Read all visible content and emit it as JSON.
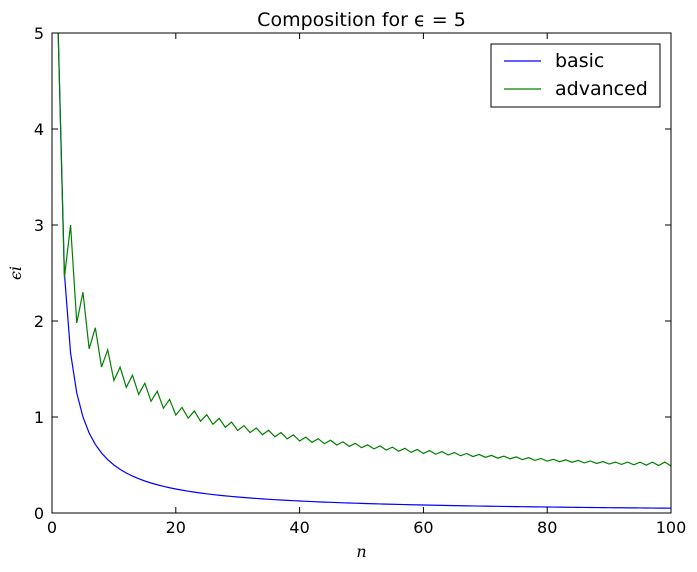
{
  "chart_data": {
    "type": "line",
    "title": "Composition for ϵ = 5",
    "xlabel": "n",
    "ylabel": "ϵi",
    "xlim": [
      0,
      100
    ],
    "ylim": [
      0,
      5
    ],
    "x_ticks": [
      0,
      20,
      40,
      60,
      80,
      100
    ],
    "y_ticks": [
      0,
      1,
      2,
      3,
      4,
      5
    ],
    "grid": false,
    "legend_position": "top-right",
    "series": [
      {
        "name": "basic",
        "color": "#0000ff",
        "function": "5/n",
        "x_range": [
          1,
          100
        ],
        "sample_points": [
          [
            1,
            5.0
          ],
          [
            2,
            2.5
          ],
          [
            3,
            1.67
          ],
          [
            4,
            1.25
          ],
          [
            5,
            1.0
          ],
          [
            10,
            0.5
          ],
          [
            20,
            0.25
          ],
          [
            40,
            0.125
          ],
          [
            60,
            0.083
          ],
          [
            80,
            0.0625
          ],
          [
            100,
            0.05
          ]
        ]
      },
      {
        "name": "advanced",
        "color": "#008000",
        "x_range": [
          1,
          100
        ],
        "pattern": "zigzag: odd n peaks, even n troughs",
        "sample_points": [
          [
            1,
            5.0
          ],
          [
            2,
            2.45
          ],
          [
            3,
            3.0
          ],
          [
            4,
            1.98
          ],
          [
            5,
            2.3
          ],
          [
            6,
            1.71
          ],
          [
            7,
            1.93
          ],
          [
            8,
            1.52
          ],
          [
            9,
            1.7
          ],
          [
            10,
            1.38
          ],
          [
            11,
            1.52
          ],
          [
            20,
            1.02
          ],
          [
            21,
            1.1
          ],
          [
            30,
            0.86
          ],
          [
            31,
            0.91
          ],
          [
            40,
            0.75
          ],
          [
            41,
            0.79
          ],
          [
            50,
            0.68
          ],
          [
            51,
            0.71
          ],
          [
            60,
            0.62
          ],
          [
            61,
            0.65
          ],
          [
            70,
            0.58
          ],
          [
            71,
            0.6
          ],
          [
            80,
            0.54
          ],
          [
            81,
            0.56
          ],
          [
            90,
            0.51
          ],
          [
            91,
            0.53
          ],
          [
            100,
            0.49
          ]
        ]
      }
    ]
  }
}
